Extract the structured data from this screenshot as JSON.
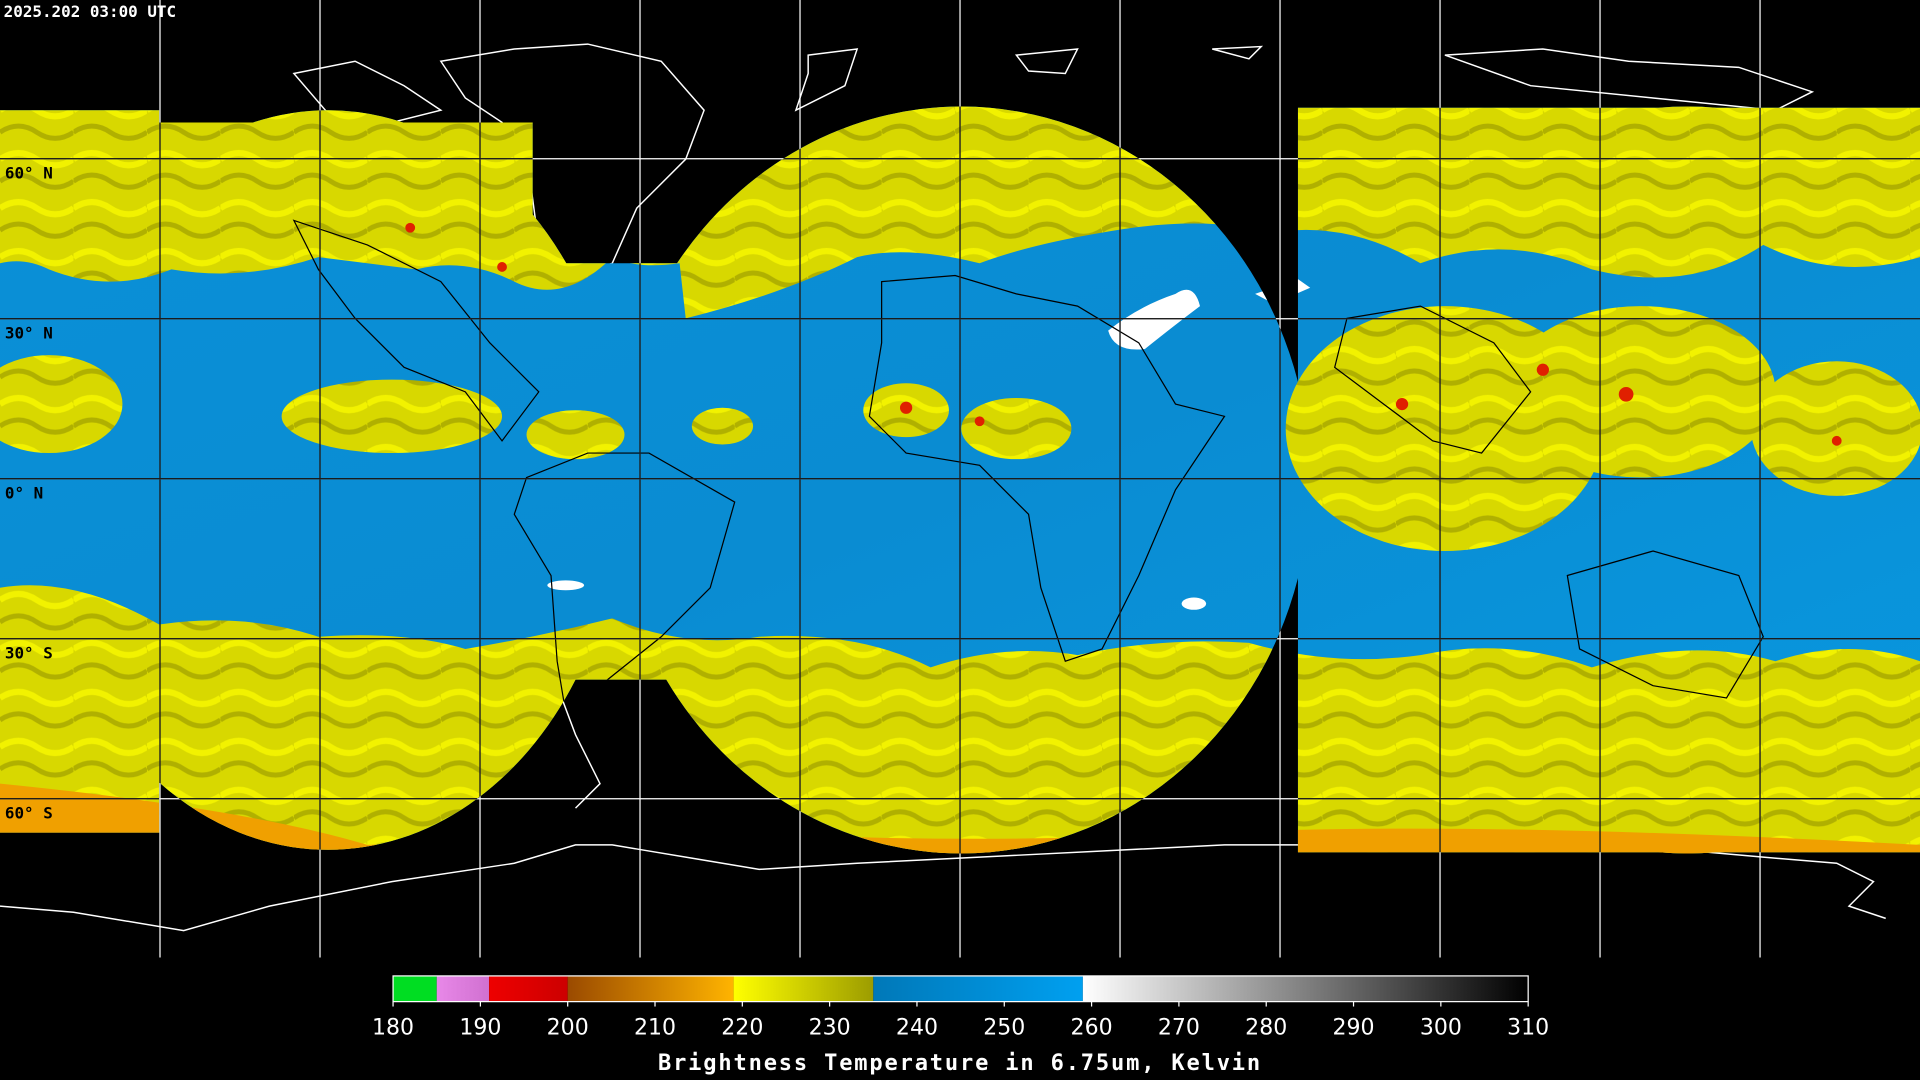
{
  "header": {
    "timestamp": "2025.202 03:00 UTC"
  },
  "map": {
    "latitudes": [
      {
        "value": 60,
        "label": "60° N"
      },
      {
        "value": 30,
        "label": "30° N"
      },
      {
        "value": 0,
        "label": "0° N"
      },
      {
        "value": -30,
        "label": "30° S"
      },
      {
        "value": -60,
        "label": "60° S"
      }
    ]
  },
  "colorbar": {
    "title": "Brightness Temperature in 6.75um, Kelvin",
    "range": [
      180,
      310
    ],
    "ticks": [
      180,
      190,
      200,
      210,
      220,
      230,
      240,
      250,
      260,
      270,
      280,
      290,
      300,
      310
    ],
    "segments": [
      {
        "from": 180,
        "to": 185,
        "start": "#00dd22",
        "end": "#00dd22"
      },
      {
        "from": 185,
        "to": 191,
        "start": "#e888e8",
        "end": "#d070d0"
      },
      {
        "from": 191,
        "to": 200,
        "start": "#ee0000",
        "end": "#cc0000"
      },
      {
        "from": 200,
        "to": 219,
        "start": "#9a4a00",
        "end": "#ffb400"
      },
      {
        "from": 219,
        "to": 235,
        "start": "#ffff00",
        "end": "#9c9c00"
      },
      {
        "from": 235,
        "to": 259,
        "start": "#0078b8",
        "end": "#00a0f0"
      },
      {
        "from": 259,
        "to": 310,
        "start": "#ffffff",
        "end": "#000000"
      }
    ]
  }
}
